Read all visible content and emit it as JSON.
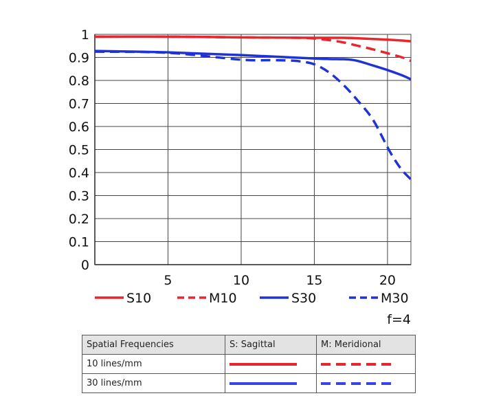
{
  "chart_data": {
    "type": "line",
    "xlim": [
      0,
      21.6
    ],
    "ylim": [
      0,
      1
    ],
    "x_ticks": [
      "5",
      "10",
      "15",
      "20"
    ],
    "y_ticks": [
      "0",
      "0.1",
      "0.2",
      "0.3",
      "0.4",
      "0.5",
      "0.6",
      "0.7",
      "0.8",
      "0.9",
      "1"
    ],
    "grid": true,
    "legend_position": "bottom",
    "aperture_label": "f=4",
    "series": [
      {
        "name": "S10",
        "color": "#e8262d",
        "dash": "solid",
        "x": [
          0,
          5,
          10,
          15,
          17,
          18,
          19,
          20,
          21,
          21.6
        ],
        "y": [
          0.99,
          0.99,
          0.987,
          0.985,
          0.985,
          0.983,
          0.98,
          0.977,
          0.973,
          0.97
        ]
      },
      {
        "name": "M10",
        "color": "#e8262d",
        "dash": "dashed",
        "x": [
          0,
          5,
          10,
          14,
          15,
          16,
          17,
          18,
          19,
          20,
          21,
          21.6
        ],
        "y": [
          0.99,
          0.99,
          0.987,
          0.985,
          0.982,
          0.975,
          0.965,
          0.95,
          0.935,
          0.918,
          0.9,
          0.885
        ]
      },
      {
        "name": "S30",
        "color": "#1f32d6",
        "dash": "solid",
        "x": [
          0,
          5,
          10,
          15,
          16,
          17,
          17.5,
          18,
          19,
          20,
          21,
          21.6
        ],
        "y": [
          0.928,
          0.922,
          0.91,
          0.895,
          0.893,
          0.892,
          0.89,
          0.884,
          0.865,
          0.845,
          0.822,
          0.805
        ]
      },
      {
        "name": "M30",
        "color": "#1f32d6",
        "dash": "dashed",
        "x": [
          0,
          5,
          10,
          12,
          13,
          14,
          15,
          16,
          17,
          18,
          19,
          20,
          20.5,
          21,
          21.6
        ],
        "y": [
          0.925,
          0.92,
          0.89,
          0.888,
          0.887,
          0.883,
          0.87,
          0.835,
          0.78,
          0.71,
          0.63,
          0.51,
          0.455,
          0.41,
          0.37
        ]
      }
    ]
  },
  "legend_table": {
    "headers": [
      "Spatial Frequencies",
      "S: Sagittal",
      "M: Meridional"
    ],
    "rows": [
      {
        "label": "10 lines/mm",
        "color": "#e8262d"
      },
      {
        "label": "30 lines/mm",
        "color": "#3a44e6"
      }
    ]
  }
}
